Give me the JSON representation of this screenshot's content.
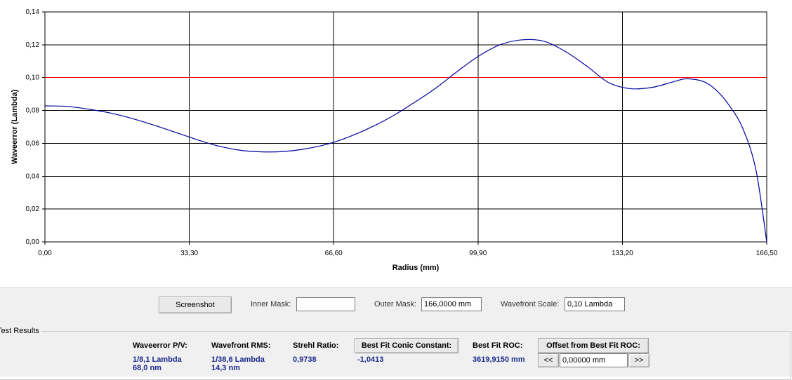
{
  "chart_data": {
    "type": "line",
    "xlabel": "Radius (mm)",
    "ylabel": "Waveerror (Lambda)",
    "xlim": [
      0,
      166.5
    ],
    "ylim": [
      0,
      0.14
    ],
    "x_ticks": [
      "0,00",
      "33,30",
      "66,60",
      "99,90",
      "133,20",
      "166,50"
    ],
    "x_tick_values": [
      0,
      33.3,
      66.6,
      99.9,
      133.2,
      166.5
    ],
    "y_ticks": [
      "0,00",
      "0,02",
      "0,04",
      "0,06",
      "0,08",
      "0,10",
      "0,12",
      "0,14"
    ],
    "y_tick_values": [
      0,
      0.02,
      0.04,
      0.06,
      0.08,
      0.1,
      0.12,
      0.14
    ],
    "grid": true,
    "reference_line": {
      "y": 0.1,
      "color": "#ff0000"
    },
    "series": [
      {
        "color": "#0000a0",
        "x": [
          0,
          5,
          10,
          15,
          20,
          25,
          30,
          35,
          40,
          45,
          50,
          55,
          60,
          65,
          70,
          75,
          80,
          85,
          90,
          95,
          100,
          105,
          110,
          115,
          120,
          125,
          130,
          135,
          140,
          145,
          148,
          152,
          155,
          158,
          161,
          164,
          166.5
        ],
        "y": [
          0.0828,
          0.0825,
          0.0808,
          0.0785,
          0.0752,
          0.0712,
          0.0668,
          0.0623,
          0.0584,
          0.0558,
          0.0548,
          0.055,
          0.0566,
          0.0594,
          0.0638,
          0.0695,
          0.0763,
          0.0845,
          0.0933,
          0.1035,
          0.113,
          0.12,
          0.123,
          0.1222,
          0.116,
          0.107,
          0.097,
          0.0933,
          0.094,
          0.0975,
          0.0993,
          0.0975,
          0.092,
          0.0825,
          0.069,
          0.044,
          0.0
        ]
      }
    ]
  },
  "controls": {
    "screenshot_label": "Screenshot",
    "inner_mask_label": "Inner Mask:",
    "inner_mask_value": "",
    "outer_mask_label": "Outer Mask:",
    "outer_mask_value": "166,0000 mm",
    "wavefront_scale_label": "Wavefront Scale:",
    "wavefront_scale_value": "0,10 Lambda"
  },
  "results": {
    "title": "Test Results",
    "pv_label": "Waveerror P/V:",
    "pv_value_1": "1/8,1 Lambda",
    "pv_value_2": "68,0 nm",
    "rms_label": "Wavefront RMS:",
    "rms_value_1": "1/38,6 Lambda",
    "rms_value_2": "14,3 nm",
    "strehl_label": "Strehl Ratio:",
    "strehl_value": "0,9738",
    "conic_button_label": "Best Fit Conic Constant:",
    "conic_value": "-1,0413",
    "roc_label": "Best Fit ROC:",
    "roc_value": "3619,9150 mm",
    "offset_button_label": "Offset from Best Fit ROC:",
    "offset_dec_label": "<<",
    "offset_value": "0,00000 mm",
    "offset_inc_label": ">>"
  }
}
